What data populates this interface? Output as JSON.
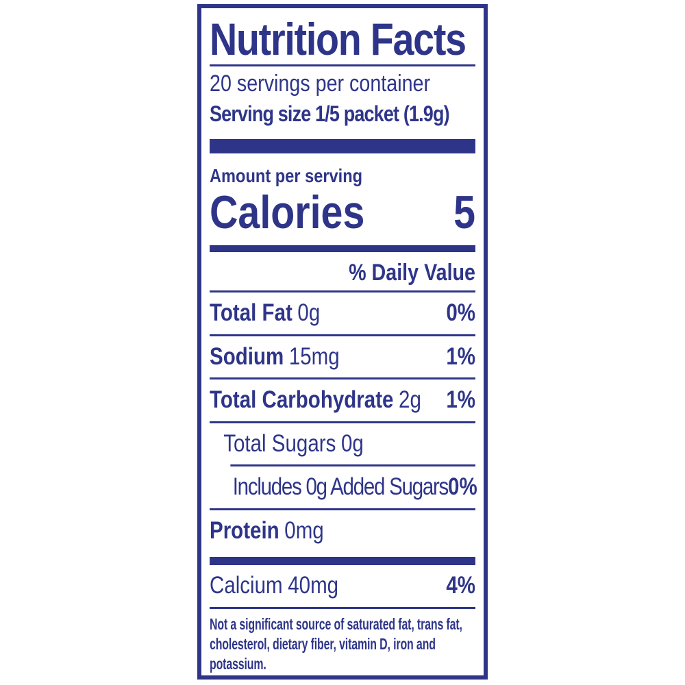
{
  "label": {
    "accent_color": "#2e3589",
    "title": "Nutrition Facts",
    "servings_per_container": "20 servings per container",
    "serving_size": "Serving size 1/5 packet (1.9g)",
    "amount_per_serving": "Amount per serving",
    "calories": {
      "label": "Calories",
      "value": "5"
    },
    "daily_value_header": "% Daily Value",
    "rows": [
      {
        "name": "Total Fat",
        "amount": "0g",
        "dv": "0%"
      },
      {
        "name": "Sodium",
        "amount": "15mg",
        "dv": "1%"
      },
      {
        "name": "Total Carbohydrate",
        "amount": "2g",
        "dv": "1%"
      },
      {
        "name": "Total Sugars",
        "amount": "0g",
        "dv": ""
      },
      {
        "name": "Includes 0g Added Sugars",
        "amount": "",
        "dv": "0%"
      },
      {
        "name": "Protein",
        "amount": "0mg",
        "dv": ""
      },
      {
        "name": "Calcium",
        "amount": "40mg",
        "dv": "4%"
      }
    ],
    "footnote": "Not a significant source of saturated fat, trans fat, cholesterol, dietary fiber, vitamin D, iron and potassium."
  }
}
